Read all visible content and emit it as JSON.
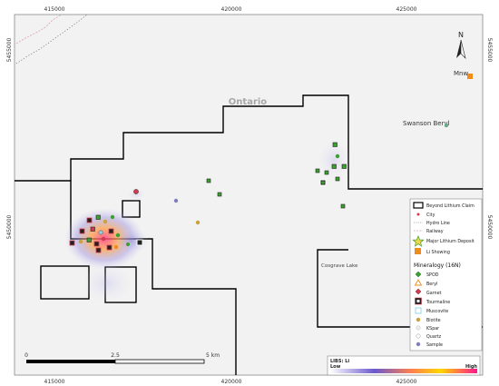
{
  "map": {
    "region_label": "Ontario",
    "lake_label": "Cosgrave Lake",
    "town_label": "Mnw",
    "deposit_label": "Swanson Beryl",
    "north_label": "N"
  },
  "axes": {
    "x_ticks": [
      "415000",
      "420000",
      "425000"
    ],
    "y_ticks": [
      "5455000",
      "5450000"
    ]
  },
  "scale_bar": {
    "labels": [
      "0",
      "2.5",
      "5 km"
    ]
  },
  "legend": {
    "top_items": [
      {
        "label": "Beyond Lithium Claim",
        "icon": "claim-box-icon"
      },
      {
        "label": "City",
        "icon": "city-dot-icon"
      },
      {
        "label": "Hydro Line",
        "icon": "hydro-line-icon"
      },
      {
        "label": "Railway",
        "icon": "railway-icon"
      },
      {
        "label": "Major Lithium Deposit",
        "icon": "star-icon"
      },
      {
        "label": "Li Showing",
        "icon": "li-showing-icon"
      }
    ],
    "section_title": "Mineralogy (16N)",
    "mineral_items": [
      {
        "label": "SPOD",
        "icon": "spod-diamond-icon",
        "color": "#3aa02e"
      },
      {
        "label": "Beryl",
        "icon": "beryl-triangle-icon",
        "color": "#f08c1a"
      },
      {
        "label": "Garnet",
        "icon": "garnet-diamond-icon",
        "color": "#d23b4b"
      },
      {
        "label": "Tourmaline",
        "icon": "tourmaline-square-icon",
        "color": "#222222"
      },
      {
        "label": "Muscovite",
        "icon": "muscovite-square-icon",
        "color": "#8fd3e8"
      },
      {
        "label": "Biotite",
        "icon": "biotite-circle-icon",
        "color": "#c8a23a"
      },
      {
        "label": "KSpar",
        "icon": "kspar-circle-icon",
        "color": "#eeeeee"
      },
      {
        "label": "Quartz",
        "icon": "quartz-circle-icon",
        "color": "#ffffff"
      },
      {
        "label": "Sample",
        "icon": "sample-circle-icon",
        "color": "#7f7fbf"
      }
    ]
  },
  "libs_legend": {
    "title": "LIBS: Li",
    "low_label": "Low",
    "high_label": "High",
    "gradient_colors": [
      "#ffffff",
      "#6a5acd",
      "#ff7f50",
      "#ffd700",
      "#ff1493"
    ]
  },
  "colors": {
    "map_bg": "#f2f2f2",
    "claim_outline": "#000000",
    "spod": "#3aa02e",
    "garnet": "#d23b4b",
    "li_showing": "#f08c1a",
    "hydro_line": "#d8a0b8"
  }
}
